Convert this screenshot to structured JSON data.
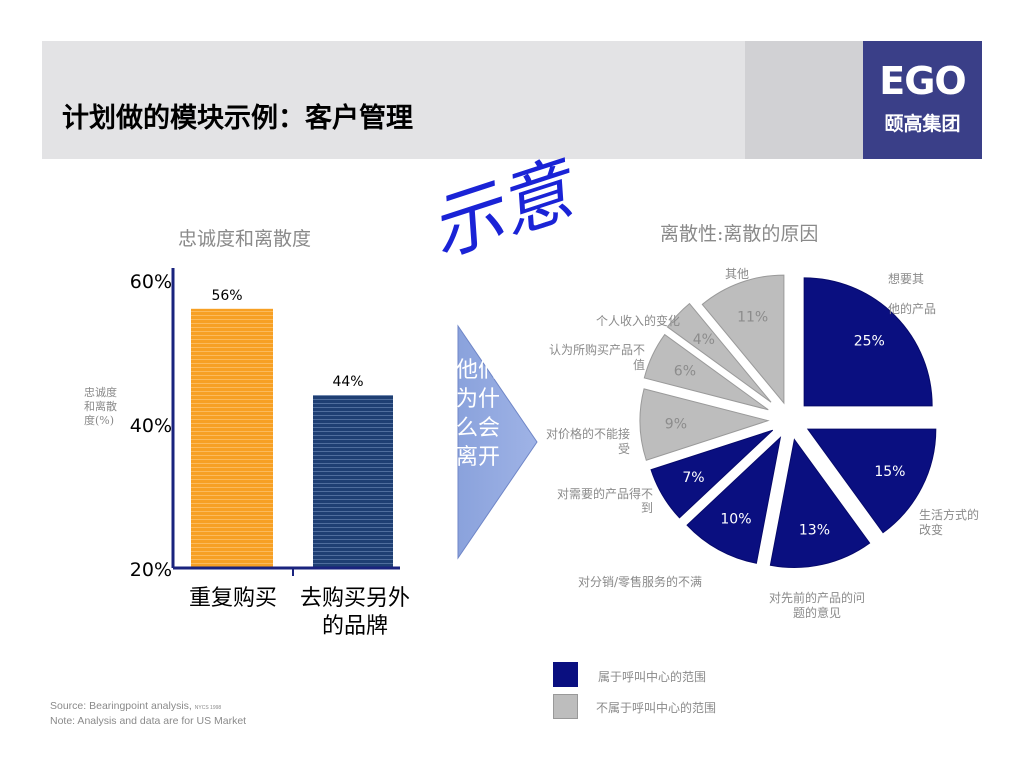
{
  "header": {
    "title": "计划做的模块示例：客户管理",
    "logo_main": "EGO",
    "logo_sub": "颐高集团"
  },
  "stamp": "示意",
  "arrow_text": "他们为什么会离开",
  "colors": {
    "bar_loyal": "#f7a024",
    "bar_switch": "#1f3f73",
    "pie_call_center": "#0a0f80",
    "pie_other": "#bdbdbd"
  },
  "chart_data": [
    {
      "type": "bar",
      "title": "忠诚度和离散度",
      "ylabel": "忠诚度和离散度(%)",
      "categories": [
        "重复购买",
        "去购买另外的品牌"
      ],
      "values": [
        56,
        44
      ],
      "value_labels": [
        "56%",
        "44%"
      ],
      "ylim": [
        20,
        60
      ],
      "yticks": [
        "60%",
        "40%",
        "20%"
      ]
    },
    {
      "type": "pie",
      "title": "离散性:离散的原因",
      "slices": [
        {
          "label": "想要其他的产品",
          "value": 25,
          "value_label": "25%",
          "group": "call_center"
        },
        {
          "label": "生活方式的改变",
          "value": 15,
          "value_label": "15%",
          "group": "call_center"
        },
        {
          "label": "对先前的产品的问题的意见",
          "value": 13,
          "value_label": "13%",
          "group": "call_center"
        },
        {
          "label": "对分销/零售服务的不满",
          "value": 10,
          "value_label": "10%",
          "group": "call_center"
        },
        {
          "label": "对需要的产品得不到",
          "value": 7,
          "value_label": "7%",
          "group": "call_center"
        },
        {
          "label": "对价格的不能接受",
          "value": 9,
          "value_label": "9%",
          "group": "other"
        },
        {
          "label": "认为所购买产品不值",
          "value": 6,
          "value_label": "6%",
          "group": "other"
        },
        {
          "label": "个人收入的变化",
          "value": 4,
          "value_label": "4%",
          "group": "other"
        },
        {
          "label": "其他",
          "value": 11,
          "value_label": "11%",
          "group": "other"
        }
      ],
      "legend": [
        {
          "label": "属于呼叫中心的范围",
          "group": "call_center"
        },
        {
          "label": "不属于呼叫中心的范围",
          "group": "other"
        }
      ]
    }
  ],
  "footer": {
    "source": "Source: Bearingpoint  analysis,",
    "source_small": "NYCS 1998",
    "note": "Note:     Analysis and data are for US Market"
  }
}
